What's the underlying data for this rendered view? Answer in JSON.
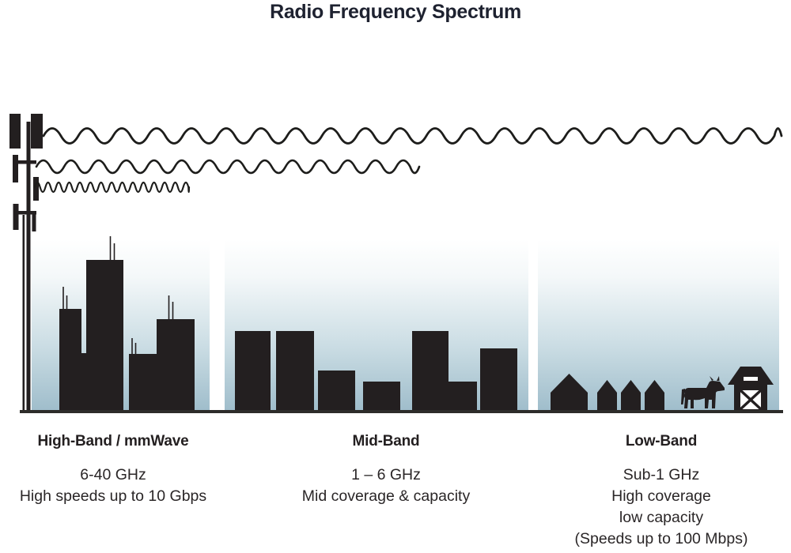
{
  "title": "Radio Frequency Spectrum",
  "bands": [
    {
      "id": "high",
      "heading": "High-Band / mmWave",
      "lines": [
        "6-40 GHz",
        "High speeds up to 10 Gbps"
      ],
      "scene": "city-skyline",
      "wave": "shortest-wavelength-shortest-reach"
    },
    {
      "id": "mid",
      "heading": "Mid-Band",
      "lines": [
        "1 – 6 GHz",
        "Mid coverage & capacity"
      ],
      "scene": "town-buildings",
      "wave": "medium-wavelength-medium-reach"
    },
    {
      "id": "low",
      "heading": "Low-Band",
      "lines": [
        "Sub-1 GHz",
        "High coverage",
        "low capacity",
        "(Speeds up to 100 Mbps)"
      ],
      "scene": "rural-houses-cow-barn",
      "wave": "longest-wavelength-longest-reach"
    }
  ],
  "colors": {
    "silhouette": "#231f20",
    "ground": "#2d2c2a",
    "sky_top": "#ffffff",
    "sky_bottom": "#9fbdcb",
    "title_text": "#1e2230"
  },
  "icons": [
    "cell-tower-icon",
    "radio-wave-icon",
    "house-icon",
    "cow-icon",
    "barn-icon"
  ]
}
